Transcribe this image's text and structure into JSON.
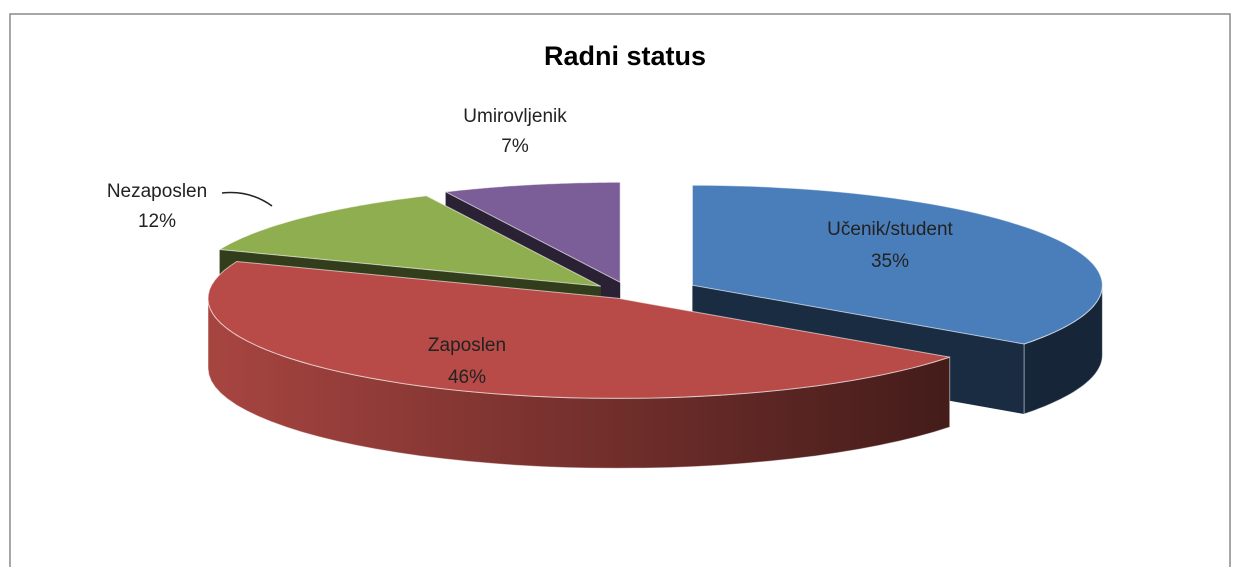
{
  "chart_data": {
    "type": "pie",
    "title": "Radni status",
    "categories": [
      "Učenik/student",
      "Zaposlen",
      "Nezaposlen",
      "Umirovljenik"
    ],
    "values": [
      35,
      46,
      12,
      7
    ],
    "value_labels": [
      "35%",
      "46%",
      "12%",
      "7%"
    ],
    "colors": [
      "#4a7ebb",
      "#b84b47",
      "#8fae50",
      "#7b5e98"
    ]
  }
}
